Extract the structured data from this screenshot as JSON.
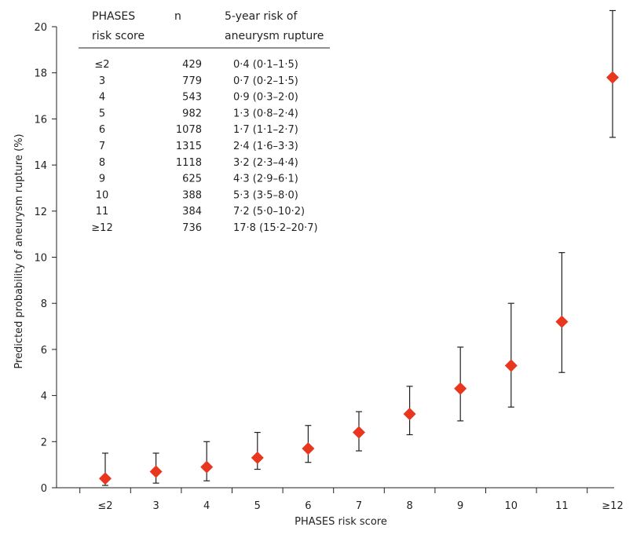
{
  "chart_data": {
    "type": "scatter",
    "xlabel": "PHASES risk score",
    "ylabel": "Predicted probability of aneurysm rupture (%)",
    "ylim": [
      0,
      20
    ],
    "yticks": [
      "0",
      "2",
      "4",
      "6",
      "8",
      "10",
      "12",
      "14",
      "16",
      "18",
      "20"
    ],
    "categories": [
      "≤2",
      "3",
      "4",
      "5",
      "6",
      "7",
      "8",
      "9",
      "10",
      "11",
      "≥12"
    ],
    "values": [
      0.4,
      0.7,
      0.9,
      1.3,
      1.7,
      2.4,
      3.2,
      4.3,
      5.3,
      7.2,
      17.8
    ],
    "ci_low": [
      0.1,
      0.2,
      0.3,
      0.8,
      1.1,
      1.6,
      2.3,
      2.9,
      3.5,
      5.0,
      15.2
    ],
    "ci_high": [
      1.5,
      1.5,
      2.0,
      2.4,
      2.7,
      3.3,
      4.4,
      6.1,
      8.0,
      10.2,
      20.7
    ],
    "marker_color": "#e8361f",
    "grid": false
  },
  "table": {
    "headers": {
      "score_line1": "PHASES",
      "score_line2": "risk score",
      "n": "n",
      "risk_line1": "5-year risk of",
      "risk_line2": "aneurysm rupture"
    },
    "rows": [
      {
        "score": "≤2",
        "n": "429",
        "risk": "0·4 (0·1–1·5)"
      },
      {
        "score": "3",
        "n": "779",
        "risk": "0·7 (0·2–1·5)"
      },
      {
        "score": "4",
        "n": "543",
        "risk": "0·9 (0·3–2·0)"
      },
      {
        "score": "5",
        "n": "982",
        "risk": "1·3 (0·8–2·4)"
      },
      {
        "score": "6",
        "n": "1078",
        "risk": "1·7 (1·1–2·7)"
      },
      {
        "score": "7",
        "n": "1315",
        "risk": "2·4 (1·6–3·3)"
      },
      {
        "score": "8",
        "n": "1118",
        "risk": "3·2 (2·3–4·4)"
      },
      {
        "score": "9",
        "n": "625",
        "risk": "4·3 (2·9–6·1)"
      },
      {
        "score": "10",
        "n": "388",
        "risk": "5·3 (3·5–8·0)"
      },
      {
        "score": "11",
        "n": "384",
        "risk": "7·2 (5·0–10·2)"
      },
      {
        "score": "≥12",
        "n": "736",
        "risk": "17·8 (15·2–20·7)"
      }
    ]
  }
}
